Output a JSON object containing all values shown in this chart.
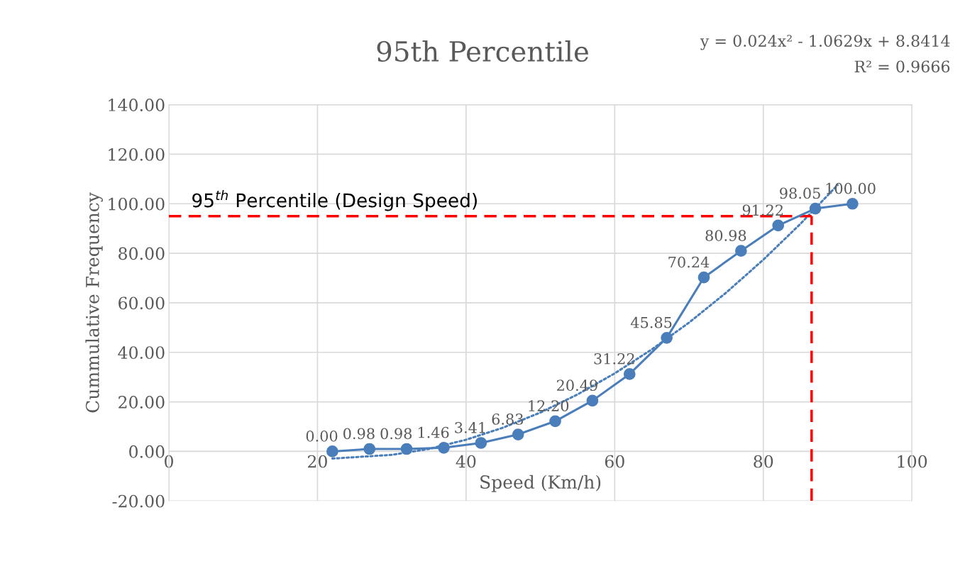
{
  "chart_data": {
    "type": "line",
    "title": "95th Percentile",
    "xlabel": "Speed (Km/h)",
    "ylabel": "Cummulative Frequency",
    "x": [
      22,
      27,
      32,
      37,
      42,
      47,
      52,
      57,
      62,
      67,
      72,
      77,
      82,
      87,
      92
    ],
    "series": [
      {
        "color": "#4a7ebb",
        "marker": "circle",
        "line_style": "solid",
        "values": [
          0.0,
          0.98,
          0.98,
          1.46,
          3.41,
          6.83,
          12.2,
          20.49,
          31.22,
          45.85,
          70.24,
          80.98,
          91.22,
          98.05,
          100.0
        ],
        "value_labels": [
          "0.00",
          "0.98",
          "0.98",
          "1.46",
          "3.41",
          "6.83",
          "12.20",
          "20.49",
          "31.22",
          "45.85",
          "70.24",
          "80.98",
          "91.22",
          "98.05",
          "100.00"
        ]
      },
      {
        "color": "#4a7ebb",
        "marker": "none",
        "line_style": "dotted",
        "x": [
          22,
          30,
          35,
          40,
          45,
          50,
          55,
          60,
          65,
          70,
          75,
          80,
          85,
          90
        ],
        "values": [
          -2.9,
          -1.4,
          1.0,
          4.7,
          9.6,
          15.7,
          23.0,
          31.5,
          41.2,
          52.0,
          64.1,
          77.4,
          91.9,
          107.6
        ]
      }
    ],
    "xlim": [
      0,
      100
    ],
    "xticks": [
      0,
      20,
      40,
      60,
      80,
      100
    ],
    "ylim": [
      -20,
      140
    ],
    "yticks": [
      {
        "value": -20,
        "label": "-20.00"
      },
      {
        "value": 0,
        "label": "0.00"
      },
      {
        "value": 20,
        "label": "20.00"
      },
      {
        "value": 40,
        "label": "40.00"
      },
      {
        "value": 60,
        "label": "60.00"
      },
      {
        "value": 80,
        "label": "80.00"
      },
      {
        "value": 100,
        "label": "100.00"
      },
      {
        "value": 120,
        "label": "120.00"
      },
      {
        "value": 140,
        "label": "140.00"
      }
    ],
    "grid": true,
    "ref_lines": [
      {
        "axis": "y",
        "value": 95,
        "label": "95$^{th}$ Percentile (Design Speed)",
        "color": "#ff0000",
        "line_style": "dashed"
      },
      {
        "axis": "x",
        "value": 86.5,
        "color": "#ff0000",
        "line_style": "dashed"
      }
    ],
    "annotations": [
      "y = 0.024x² - 1.0629x + 8.8414",
      "R² = 0.9666"
    ]
  }
}
